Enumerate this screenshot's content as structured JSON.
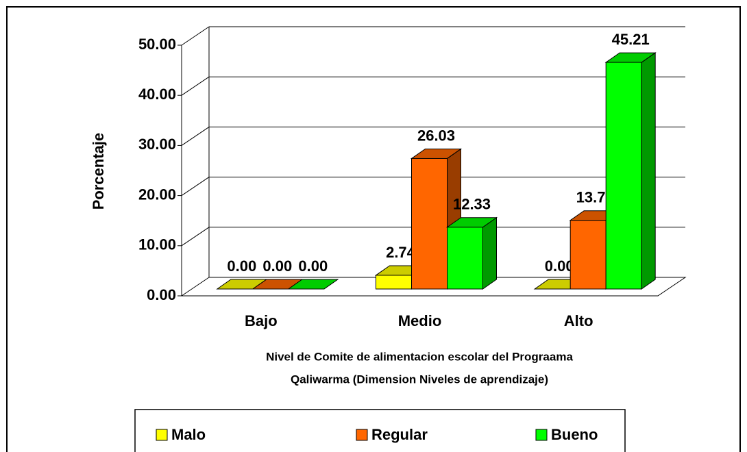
{
  "chart_data": {
    "type": "bar3d",
    "ylabel": "Porcentaje",
    "xlabel": [
      "Nivel de Comite de alimentacion escolar del Prograama",
      "Qaliwarma (Dimension Niveles de aprendizaje)"
    ],
    "categories": [
      "Bajo",
      "Medio",
      "Alto"
    ],
    "series": [
      {
        "name": "Malo",
        "color": "#ffff00",
        "values": [
          0,
          2.74,
          0
        ],
        "value_labels": [
          "0.00",
          "2.74",
          "0.00"
        ]
      },
      {
        "name": "Regular",
        "color": "#ff6600",
        "values": [
          0,
          26.03,
          13.7
        ],
        "value_labels": [
          "0.00",
          "26.03",
          "13.70"
        ]
      },
      {
        "name": "Bueno",
        "color": "#00ff00",
        "values": [
          0,
          12.33,
          45.21
        ],
        "value_labels": [
          "0.00",
          "12.33",
          "45.21"
        ]
      }
    ],
    "ylim": [
      0,
      50
    ],
    "yticks": [
      {
        "value": 0,
        "label": "0.00"
      },
      {
        "value": 10,
        "label": "10.00"
      },
      {
        "value": 20,
        "label": "20.00"
      },
      {
        "value": 30,
        "label": "30.00"
      },
      {
        "value": 40,
        "label": "40.00"
      },
      {
        "value": 50,
        "label": "50.00"
      }
    ],
    "grid": true,
    "legend": "bottom"
  }
}
